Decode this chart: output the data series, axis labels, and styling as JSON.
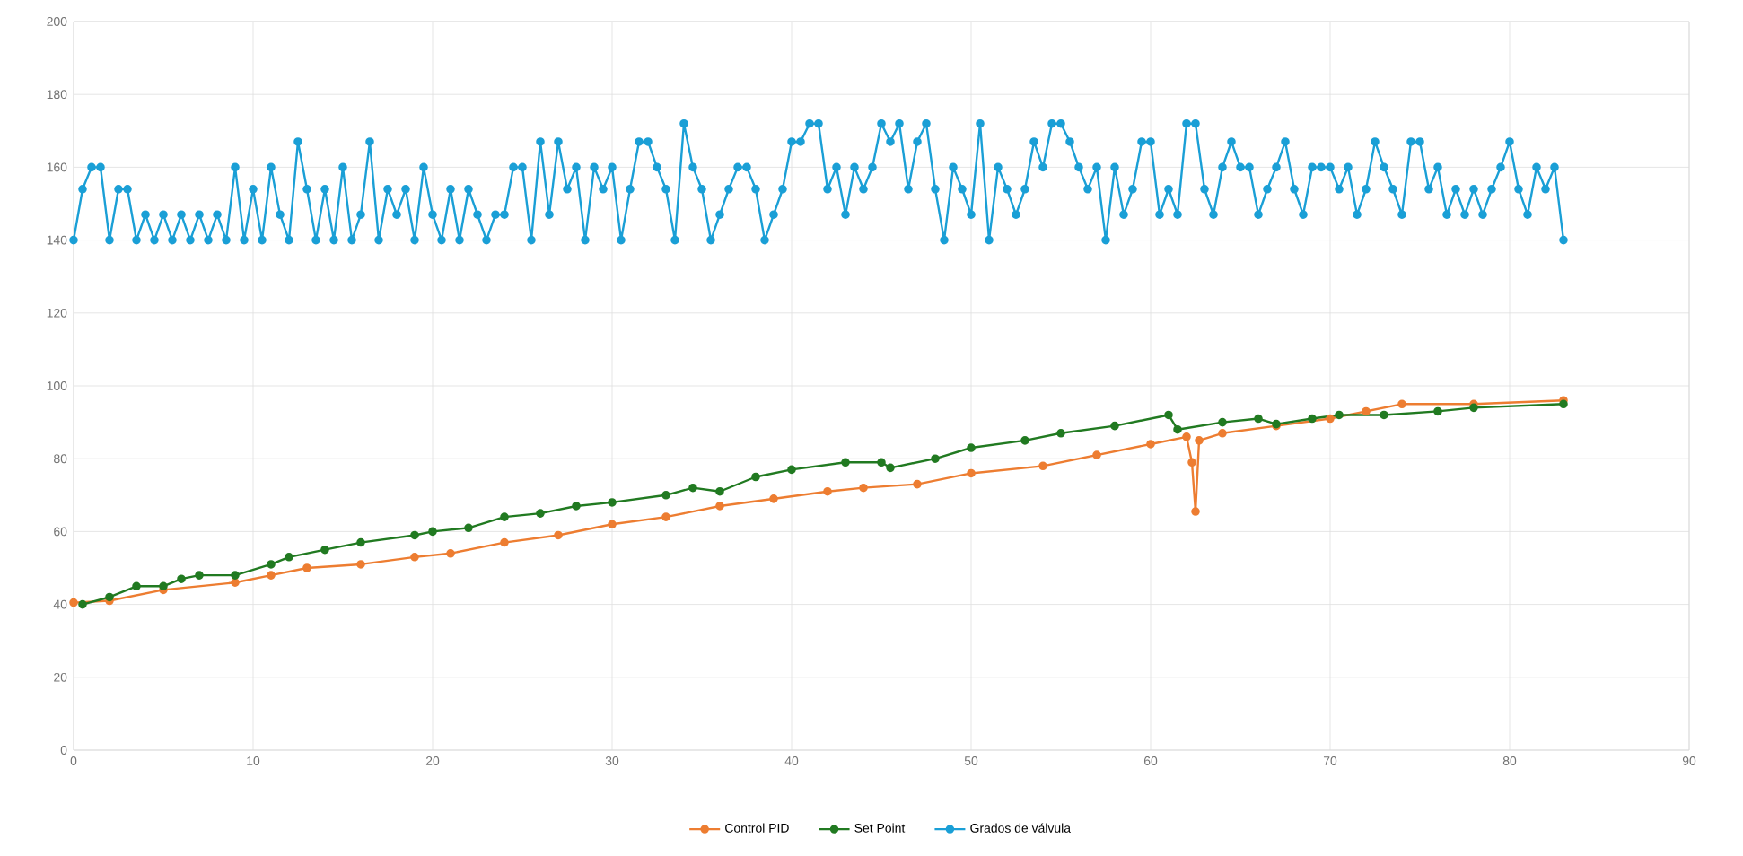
{
  "chart_data": {
    "type": "line",
    "xlim": [
      0,
      90
    ],
    "ylim": [
      0,
      200
    ],
    "xticks": [
      0,
      10,
      20,
      30,
      40,
      50,
      60,
      70,
      80,
      90
    ],
    "yticks": [
      0,
      20,
      40,
      60,
      80,
      100,
      120,
      140,
      160,
      180,
      200
    ],
    "grid": true,
    "legend": "bottom",
    "marker": "circle",
    "line_style": "solid",
    "series": [
      {
        "name": "Control PID",
        "color": "#ed7d31",
        "x": [
          0,
          2,
          5,
          9,
          11,
          13,
          16,
          19,
          21,
          24,
          27,
          30,
          33,
          36,
          39,
          42,
          44,
          47,
          50,
          54,
          57,
          60,
          62,
          62.3,
          62.5,
          62.7,
          64,
          67,
          70,
          72,
          74,
          78,
          83
        ],
        "values": [
          40.5,
          41,
          44,
          46,
          48,
          50,
          51,
          53,
          54,
          57,
          59,
          62,
          64,
          67,
          69,
          71,
          72,
          73,
          76,
          78,
          81,
          84,
          86,
          79,
          65.5,
          85,
          87,
          89,
          91,
          93,
          95,
          95,
          96
        ]
      },
      {
        "name": "Set Point",
        "color": "#217a21",
        "x": [
          0.5,
          2,
          3.5,
          5,
          6,
          7,
          9,
          11,
          12,
          14,
          16,
          19,
          20,
          22,
          24,
          26,
          28,
          30,
          33,
          34.5,
          36,
          38,
          40,
          43,
          45,
          45.5,
          48,
          50,
          53,
          55,
          58,
          61,
          61.5,
          64,
          66,
          67,
          69,
          70.5,
          73,
          76,
          78,
          83
        ],
        "values": [
          40,
          42,
          45,
          45,
          47,
          48,
          48,
          51,
          53,
          55,
          57,
          59,
          60,
          61,
          64,
          65,
          67,
          68,
          70,
          72,
          71,
          75,
          77,
          79,
          79,
          77.5,
          80,
          83,
          85,
          87,
          89,
          92,
          88,
          90,
          91,
          89.5,
          91,
          92,
          92,
          93,
          94,
          95
        ]
      },
      {
        "name": "Grados de válvula",
        "color": "#1a9fd6",
        "x": [
          0,
          0.5,
          1,
          1.5,
          2,
          2.5,
          3,
          3.5,
          4,
          4.5,
          5,
          5.5,
          6,
          6.5,
          7,
          7.5,
          8,
          8.5,
          9,
          9.5,
          10,
          10.5,
          11,
          11.5,
          12,
          12.5,
          13,
          13.5,
          14,
          14.5,
          15,
          15.5,
          16,
          16.5,
          17,
          17.5,
          18,
          18.5,
          19,
          19.5,
          20,
          20.5,
          21,
          21.5,
          22,
          22.5,
          23,
          23.5,
          24,
          24.5,
          25,
          25.5,
          26,
          26.5,
          27,
          27.5,
          28,
          28.5,
          29,
          29.5,
          30,
          30.5,
          31,
          31.5,
          32,
          32.5,
          33,
          33.5,
          34,
          34.5,
          35,
          35.5,
          36,
          36.5,
          37,
          37.5,
          38,
          38.5,
          39,
          39.5,
          40,
          40.5,
          41,
          41.5,
          42,
          42.5,
          43,
          43.5,
          44,
          44.5,
          45,
          45.5,
          46,
          46.5,
          47,
          47.5,
          48,
          48.5,
          49,
          49.5,
          50,
          50.5,
          51,
          51.5,
          52,
          52.5,
          53,
          53.5,
          54,
          54.5,
          55,
          55.5,
          56,
          56.5,
          57,
          57.5,
          58,
          58.5,
          59,
          59.5,
          60,
          60.5,
          61,
          61.5,
          62,
          62.5,
          63,
          63.5,
          64,
          64.5,
          65,
          65.5,
          66,
          66.5,
          67,
          67.5,
          68,
          68.5,
          69,
          69.5,
          70,
          70.5,
          71,
          71.5,
          72,
          72.5,
          73,
          73.5,
          74,
          74.5,
          75,
          75.5,
          76,
          76.5,
          77,
          77.5,
          78,
          78.5,
          79,
          79.5,
          80,
          80.5,
          81,
          81.5,
          82,
          82.5,
          83
        ],
        "values": [
          140,
          154,
          160,
          160,
          140,
          154,
          154,
          140,
          147,
          140,
          147,
          140,
          147,
          140,
          147,
          140,
          147,
          140,
          160,
          140,
          154,
          140,
          160,
          147,
          140,
          167,
          154,
          140,
          154,
          140,
          160,
          140,
          147,
          167,
          140,
          154,
          147,
          154,
          140,
          160,
          147,
          140,
          154,
          140,
          154,
          147,
          140,
          147,
          147,
          160,
          160,
          140,
          167,
          147,
          167,
          154,
          160,
          140,
          160,
          154,
          160,
          140,
          154,
          167,
          167,
          160,
          154,
          140,
          172,
          160,
          154,
          140,
          147,
          154,
          160,
          160,
          154,
          140,
          147,
          154,
          167,
          167,
          172,
          172,
          154,
          160,
          147,
          160,
          154,
          160,
          172,
          167,
          172,
          154,
          167,
          172,
          154,
          140,
          160,
          154,
          147,
          172,
          140,
          160,
          154,
          147,
          154,
          167,
          160,
          172,
          172,
          167,
          160,
          154,
          160,
          140,
          160,
          147,
          154,
          167,
          167,
          147,
          154,
          147,
          172,
          172,
          154,
          147,
          160,
          167,
          160,
          160,
          147,
          154,
          160,
          167,
          154,
          147,
          160,
          160,
          160,
          154,
          160,
          147,
          154,
          167,
          160,
          154,
          147,
          167,
          167,
          154,
          160,
          147,
          154,
          147,
          154,
          147,
          154,
          160,
          167,
          154,
          147,
          160,
          154,
          160,
          140
        ]
      }
    ]
  }
}
